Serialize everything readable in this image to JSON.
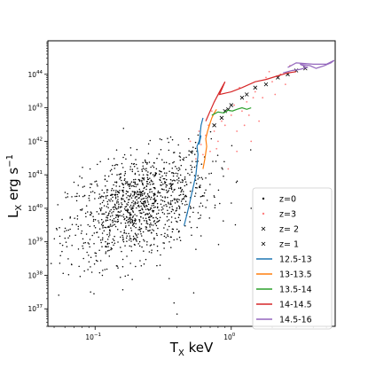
{
  "chart_data": {
    "type": "scatter",
    "title": "",
    "xlabel": "T_X keV",
    "ylabel": "L_X erg s^-1",
    "xscale": "log",
    "yscale": "log",
    "xlim": [
      0.045,
      5.8
    ],
    "ylim": [
      3e+36,
      1e+45
    ],
    "x_tick_labels": [
      {
        "x": 0.1,
        "base": "10",
        "exp": "−1"
      },
      {
        "x": 1,
        "base": "10",
        "exp": "0"
      }
    ],
    "y_tick_labels": [
      {
        "y": 1e+37,
        "base": "10",
        "exp": "37"
      },
      {
        "y": 1e+38,
        "base": "10",
        "exp": "38"
      },
      {
        "y": 1e+39,
        "base": "10",
        "exp": "39"
      },
      {
        "y": 1e+40,
        "base": "10",
        "exp": "40"
      },
      {
        "y": 1e+41,
        "base": "10",
        "exp": "41"
      },
      {
        "y": 1e+42,
        "base": "10",
        "exp": "42"
      },
      {
        "y": 1e+43,
        "base": "10",
        "exp": "43"
      },
      {
        "y": 1e+44,
        "base": "10",
        "exp": "44"
      }
    ],
    "grid": false,
    "legend": "lower right",
    "colors": {
      "z0": "#000000",
      "z3": "#ff7f7f",
      "m12_5": "#1f77b4",
      "m13": "#ff7f0e",
      "m13_5": "#2ca02c",
      "m14": "#d62728",
      "m14_5": "#9467bd"
    },
    "scatter_series": [
      {
        "name": "z=0",
        "key": "z0",
        "marker": "dot",
        "cloud": {
          "cx": 0.21,
          "cy": 1.2e+40,
          "sdx": 0.26,
          "sdy": 0.75,
          "n": 1200,
          "tmin": 0.045,
          "lmin": 2e+37
        }
      },
      {
        "name": "z=3",
        "key": "z3",
        "marker": "dot",
        "points": [
          [
            0.55,
            3e+41
          ],
          [
            0.6,
            8e+41
          ],
          [
            0.65,
            1.5e+42
          ],
          [
            0.7,
            5e+41
          ],
          [
            0.75,
            2e+42
          ],
          [
            0.8,
            1e+42
          ],
          [
            0.9,
            3e+42
          ],
          [
            1.0,
            6e+42
          ],
          [
            1.1,
            2e+42
          ],
          [
            1.2,
            8e+42
          ],
          [
            1.3,
            1.5e+43
          ],
          [
            1.5,
            3e+43
          ],
          [
            1.7,
            2e+43
          ],
          [
            2.0,
            6e+43
          ],
          [
            2.3,
            1e+44
          ],
          [
            2.7,
            1.8e+44
          ],
          [
            1.1,
            5e+41
          ],
          [
            1.4,
            1e+42
          ],
          [
            0.95,
            1.5e+41
          ],
          [
            1.6,
            4e+42
          ],
          [
            0.5,
            1e+42
          ],
          [
            0.58,
            2e+42
          ],
          [
            0.85,
            4e+42
          ],
          [
            1.25,
            3e+42
          ],
          [
            1.8,
            8e+43
          ],
          [
            2.1,
            2.5e+43
          ],
          [
            0.72,
            8e+42
          ],
          [
            1.05,
            1.2e+43
          ],
          [
            0.62,
            4e+41
          ],
          [
            1.35,
            6e+42
          ],
          [
            2.5,
            5e+43
          ],
          [
            1.9,
            1.2e+44
          ],
          [
            0.68,
            3e+42
          ],
          [
            0.78,
            6e+41
          ],
          [
            1.15,
            4e+43
          ],
          [
            1.45,
            2e+43
          ]
        ]
      },
      {
        "name": "z= 2",
        "key": "z0",
        "marker": "x",
        "points": [
          [
            0.9,
            8e+42
          ],
          [
            1.0,
            1.2e+43
          ],
          [
            1.2,
            2e+43
          ],
          [
            1.5,
            4e+43
          ],
          [
            2.2,
            8e+43
          ],
          [
            3.0,
            1.3e+44
          ],
          [
            0.75,
            3e+42
          ]
        ]
      },
      {
        "name": "z= 1",
        "key": "z0",
        "marker": "x",
        "points": [
          [
            0.95,
            9e+42
          ],
          [
            1.3,
            2.5e+43
          ],
          [
            1.8,
            5e+43
          ],
          [
            2.6,
            1e+44
          ],
          [
            3.5,
            1.5e+44
          ],
          [
            0.85,
            5e+42
          ]
        ]
      }
    ],
    "line_series": [
      {
        "name": "12.5-13",
        "key": "m12_5",
        "points": [
          [
            0.45,
            3e+39
          ],
          [
            0.47,
            6e+39
          ],
          [
            0.49,
            1.2e+40
          ],
          [
            0.51,
            2.5e+40
          ],
          [
            0.53,
            5e+40
          ],
          [
            0.55,
            1e+41
          ],
          [
            0.56,
            2e+41
          ],
          [
            0.57,
            4e+41
          ],
          [
            0.56,
            7e+41
          ],
          [
            0.58,
            1e+42
          ],
          [
            0.6,
            1.5e+42
          ],
          [
            0.58,
            8e+41
          ],
          [
            0.6,
            3e+42
          ],
          [
            0.62,
            5e+42
          ]
        ]
      },
      {
        "name": "13-13.5",
        "key": "m13",
        "points": [
          [
            0.62,
            1.5e+41
          ],
          [
            0.64,
            3e+41
          ],
          [
            0.66,
            7e+41
          ],
          [
            0.65,
            1.2e+42
          ],
          [
            0.67,
            2e+42
          ],
          [
            0.7,
            3.5e+42
          ],
          [
            0.68,
            2.5e+42
          ],
          [
            0.72,
            5e+42
          ],
          [
            0.75,
            7e+42
          ],
          [
            0.78,
            9e+42
          ]
        ]
      },
      {
        "name": "13.5-14",
        "key": "m13_5",
        "points": [
          [
            0.72,
            6e+42
          ],
          [
            0.8,
            7.5e+42
          ],
          [
            0.88,
            7e+42
          ],
          [
            0.95,
            8.5e+42
          ],
          [
            1.02,
            8e+42
          ],
          [
            1.1,
            9e+42
          ],
          [
            1.2,
            1e+43
          ],
          [
            1.3,
            9e+42
          ],
          [
            1.4,
            1e+43
          ]
        ]
      },
      {
        "name": "14-14.5",
        "key": "m14",
        "points": [
          [
            0.65,
            4e+42
          ],
          [
            0.7,
            8e+42
          ],
          [
            0.75,
            1.5e+43
          ],
          [
            0.82,
            3e+43
          ],
          [
            0.9,
            6e+43
          ],
          [
            0.82,
            2.5e+43
          ],
          [
            1.0,
            3e+43
          ],
          [
            1.2,
            4e+43
          ],
          [
            1.5,
            6e+43
          ],
          [
            1.8,
            7e+43
          ],
          [
            2.2,
            9e+43
          ],
          [
            2.6,
            1.1e+44
          ],
          [
            3.0,
            1.2e+44
          ]
        ]
      },
      {
        "name": "14.5-16",
        "key": "m14_5",
        "points": [
          [
            2.4,
            1.1e+44
          ],
          [
            2.8,
            1.3e+44
          ],
          [
            3.2,
            1.4e+44
          ],
          [
            3.6,
            1.6e+44
          ],
          [
            3.2,
            2e+44
          ],
          [
            3.8,
            1.8e+44
          ],
          [
            4.2,
            1.5e+44
          ],
          [
            4.8,
            1.8e+44
          ],
          [
            5.4,
            2.2e+44
          ],
          [
            5.7,
            2.6e+44
          ],
          [
            5.0,
            2e+44
          ],
          [
            4.0,
            2e+44
          ],
          [
            3.0,
            2.2e+44
          ],
          [
            2.6,
            1.6e+44
          ]
        ]
      }
    ],
    "outliers": [
      [
        0.052,
        2.5e+39
      ],
      [
        0.07,
        6e+40
      ],
      [
        0.065,
        1.5e+39
      ],
      [
        0.35,
        8e+37
      ],
      [
        0.38,
        1.5e+37
      ],
      [
        0.53,
        3e+37
      ],
      [
        0.4,
        7e+36
      ],
      [
        0.12,
        5e+38
      ],
      [
        0.16,
        3e+38
      ],
      [
        1.4,
        1e+40
      ],
      [
        0.08,
        8e+40
      ],
      [
        0.25,
        5e+38
      ],
      [
        0.55,
        6e+38
      ],
      [
        0.09,
        2e+40
      ],
      [
        0.3,
        2e+38
      ],
      [
        0.6,
        1.5e+39
      ]
    ]
  }
}
